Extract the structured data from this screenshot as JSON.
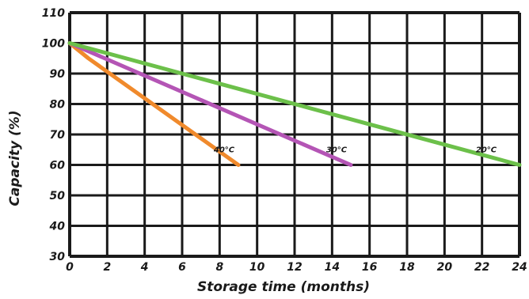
{
  "chart_data": {
    "type": "line",
    "xlabel": "Storage time (months)",
    "ylabel": "Capacity (%)",
    "xlim": [
      0,
      24
    ],
    "ylim": [
      30,
      110
    ],
    "x_ticks": [
      0,
      2,
      4,
      6,
      8,
      10,
      12,
      14,
      16,
      18,
      20,
      22,
      24
    ],
    "y_ticks": [
      30,
      40,
      50,
      60,
      70,
      80,
      90,
      100,
      110
    ],
    "grid": true,
    "legend": "none",
    "series": [
      {
        "name": "40°C",
        "color": "#f08a2c",
        "points": [
          [
            0,
            100
          ],
          [
            1,
            95
          ],
          [
            9,
            60
          ]
        ]
      },
      {
        "name": "30°C",
        "color": "#b455b5",
        "points": [
          [
            0,
            100
          ],
          [
            15,
            60
          ]
        ]
      },
      {
        "name": "20°C",
        "color": "#6cc04a",
        "points": [
          [
            0,
            100
          ],
          [
            24,
            60
          ]
        ]
      }
    ]
  }
}
